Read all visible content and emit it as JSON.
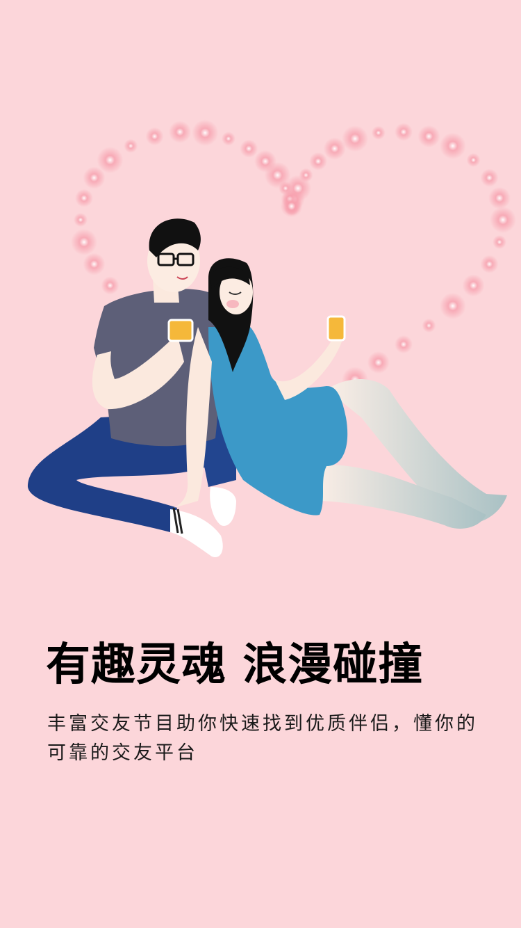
{
  "colors": {
    "background": "#fcd6da",
    "sparkle": "#f7a8b4",
    "text": "#000000"
  },
  "illustration": {
    "alt": "couple-sitting-with-drinks"
  },
  "headline": "有趣灵魂  浪漫碰撞",
  "subtitle": "丰富交友节目助你快速找到优质伴侣，懂你的可靠的交友平台"
}
